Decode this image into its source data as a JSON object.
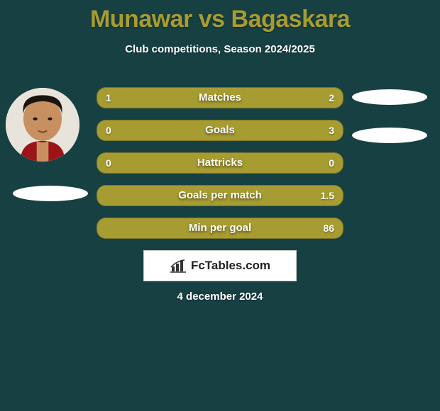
{
  "title": "Munawar vs Bagaskara",
  "subtitle": "Club competitions, Season 2024/2025",
  "colors": {
    "background": "#174043",
    "accent": "#a79c31",
    "bar_empty": "#a79c31",
    "text": "#ffffff"
  },
  "bars": [
    {
      "label": "Matches",
      "left_val": "1",
      "right_val": "2",
      "left_pct": 33,
      "right_pct": 67,
      "split": true
    },
    {
      "label": "Goals",
      "left_val": "0",
      "right_val": "3",
      "left_pct": 0,
      "right_pct": 100,
      "split": true
    },
    {
      "label": "Hattricks",
      "left_val": "0",
      "right_val": "0",
      "left_pct": 0,
      "right_pct": 0,
      "split": false
    },
    {
      "label": "Goals per match",
      "left_val": "",
      "right_val": "1.5",
      "left_pct": 0,
      "right_pct": 100,
      "split": true
    },
    {
      "label": "Min per goal",
      "left_val": "",
      "right_val": "86",
      "left_pct": 0,
      "right_pct": 100,
      "split": true
    }
  ],
  "logo_text": "FcTables.com",
  "date": "4 december 2024"
}
